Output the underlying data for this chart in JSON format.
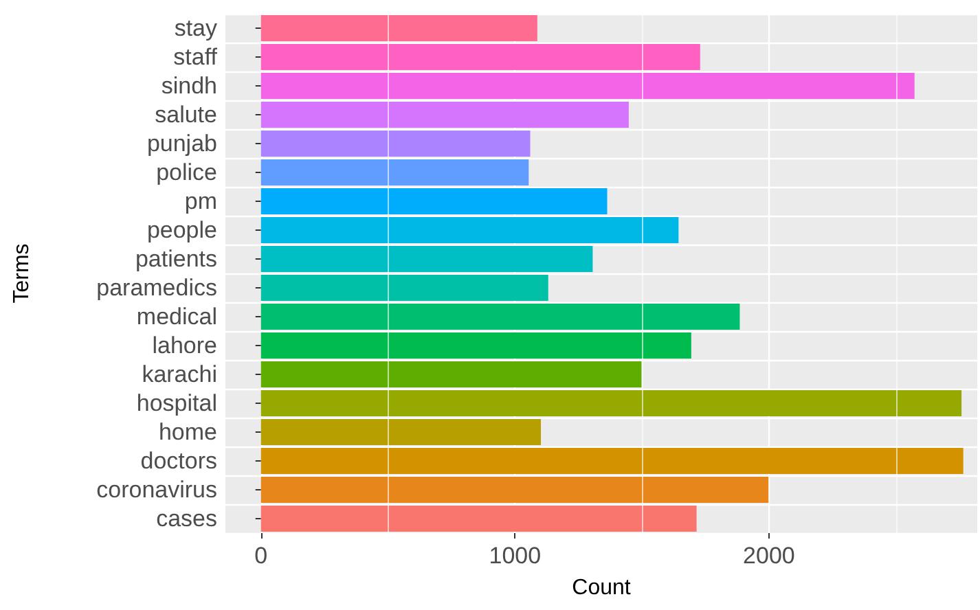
{
  "chart_data": {
    "type": "bar",
    "orientation": "horizontal",
    "xlabel": "Count",
    "ylabel": "Terms",
    "categories": [
      "stay",
      "staff",
      "sindh",
      "salute",
      "punjab",
      "police",
      "pm",
      "people",
      "patients",
      "paramedics",
      "medical",
      "lahore",
      "karachi",
      "hospital",
      "home",
      "doctors",
      "coronavirus",
      "cases"
    ],
    "values": [
      1088,
      1729,
      2573,
      1448,
      1060,
      1054,
      1363,
      1644,
      1306,
      1131,
      1885,
      1694,
      1498,
      2758,
      1102,
      2765,
      1998,
      1715
    ],
    "colors": [
      "#ff6c91",
      "#ff61c3",
      "#f365e6",
      "#d575fe",
      "#ab82ff",
      "#619cff",
      "#00acfc",
      "#00b8e5",
      "#00bfc4",
      "#00c1a7",
      "#00be70",
      "#00bb4e",
      "#5ead00",
      "#95a900",
      "#b79f00",
      "#d39200",
      "#e7861b",
      "#f8766d"
    ],
    "xlim": [
      -140,
      2820
    ],
    "xticks": [
      0,
      {
        "value": 500,
        "label": null
      },
      1000,
      {
        "value": 1500,
        "label": null
      },
      2000,
      {
        "value": 2500,
        "label": null
      }
    ],
    "grid": true
  }
}
